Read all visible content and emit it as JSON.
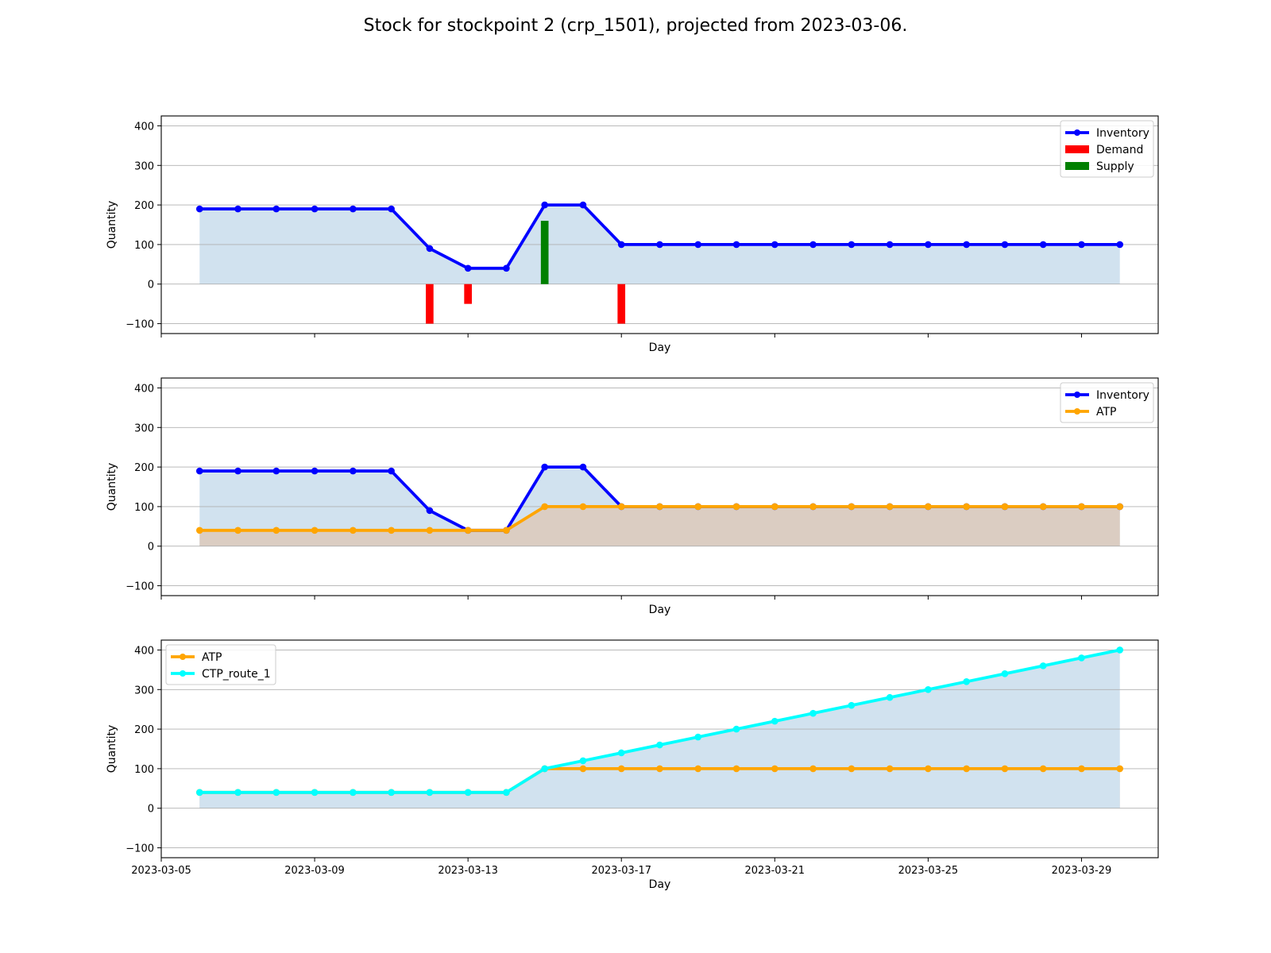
{
  "figure_title": "Stock for stockpoint 2 (crp_1501), projected from 2023-03-06.",
  "colors": {
    "inventory": "#0000ff",
    "demand": "#ff0000",
    "supply": "#008000",
    "atp": "#ffa500",
    "ctp": "#00ffff",
    "fill_blue": "#d1e2ef",
    "fill_tan": "#dbcdc2",
    "grid": "#b0b0b0"
  },
  "chart_data": [
    {
      "type": "line",
      "title": "",
      "xlabel": "Day",
      "ylabel": "Quantity",
      "ylim": [
        -125,
        425
      ],
      "xlim": [
        "2023-03-05",
        "2023-03-31"
      ],
      "yticks": [
        -100,
        0,
        100,
        200,
        300,
        400
      ],
      "ytick_labels": [
        "−100",
        "0",
        "100",
        "200",
        "300",
        "400"
      ],
      "xticks": [
        "2023-03-05",
        "2023-03-09",
        "2023-03-13",
        "2023-03-17",
        "2023-03-21",
        "2023-03-25",
        "2023-03-29"
      ],
      "show_xtick_labels": false,
      "grid": "y",
      "legend": "top-right",
      "x": [
        "2023-03-06",
        "2023-03-07",
        "2023-03-08",
        "2023-03-09",
        "2023-03-10",
        "2023-03-11",
        "2023-03-12",
        "2023-03-13",
        "2023-03-14",
        "2023-03-15",
        "2023-03-16",
        "2023-03-17",
        "2023-03-18",
        "2023-03-19",
        "2023-03-20",
        "2023-03-21",
        "2023-03-22",
        "2023-03-23",
        "2023-03-24",
        "2023-03-25",
        "2023-03-26",
        "2023-03-27",
        "2023-03-28",
        "2023-03-29",
        "2023-03-30"
      ],
      "series": [
        {
          "name": "Inventory",
          "kind": "line",
          "color": "#0000ff",
          "fill": "#d1e2ef",
          "values": [
            190,
            190,
            190,
            190,
            190,
            190,
            90,
            40,
            40,
            200,
            200,
            100,
            100,
            100,
            100,
            100,
            100,
            100,
            100,
            100,
            100,
            100,
            100,
            100,
            100
          ]
        },
        {
          "name": "Demand",
          "kind": "bar",
          "color": "#ff0000",
          "points": [
            {
              "x": "2023-03-12",
              "y": -100
            },
            {
              "x": "2023-03-13",
              "y": -50
            },
            {
              "x": "2023-03-17",
              "y": -100
            }
          ]
        },
        {
          "name": "Supply",
          "kind": "bar",
          "color": "#008000",
          "points": [
            {
              "x": "2023-03-15",
              "y": 160
            }
          ]
        }
      ]
    },
    {
      "type": "line",
      "title": "",
      "xlabel": "Day",
      "ylabel": "Quantity",
      "ylim": [
        -125,
        425
      ],
      "xlim": [
        "2023-03-05",
        "2023-03-31"
      ],
      "yticks": [
        -100,
        0,
        100,
        200,
        300,
        400
      ],
      "ytick_labels": [
        "−100",
        "0",
        "100",
        "200",
        "300",
        "400"
      ],
      "xticks": [
        "2023-03-05",
        "2023-03-09",
        "2023-03-13",
        "2023-03-17",
        "2023-03-21",
        "2023-03-25",
        "2023-03-29"
      ],
      "show_xtick_labels": false,
      "grid": "y",
      "legend": "top-right",
      "x": [
        "2023-03-06",
        "2023-03-07",
        "2023-03-08",
        "2023-03-09",
        "2023-03-10",
        "2023-03-11",
        "2023-03-12",
        "2023-03-13",
        "2023-03-14",
        "2023-03-15",
        "2023-03-16",
        "2023-03-17",
        "2023-03-18",
        "2023-03-19",
        "2023-03-20",
        "2023-03-21",
        "2023-03-22",
        "2023-03-23",
        "2023-03-24",
        "2023-03-25",
        "2023-03-26",
        "2023-03-27",
        "2023-03-28",
        "2023-03-29",
        "2023-03-30"
      ],
      "series": [
        {
          "name": "Inventory",
          "kind": "line",
          "color": "#0000ff",
          "fill": "#d1e2ef",
          "values": [
            190,
            190,
            190,
            190,
            190,
            190,
            90,
            40,
            40,
            200,
            200,
            100,
            100,
            100,
            100,
            100,
            100,
            100,
            100,
            100,
            100,
            100,
            100,
            100,
            100
          ]
        },
        {
          "name": "ATP",
          "kind": "line",
          "color": "#ffa500",
          "fill": "#dbcdc2",
          "values": [
            40,
            40,
            40,
            40,
            40,
            40,
            40,
            40,
            40,
            100,
            100,
            100,
            100,
            100,
            100,
            100,
            100,
            100,
            100,
            100,
            100,
            100,
            100,
            100,
            100
          ]
        }
      ]
    },
    {
      "type": "line",
      "title": "",
      "xlabel": "Day",
      "ylabel": "Quantity",
      "ylim": [
        -125,
        425
      ],
      "xlim": [
        "2023-03-05",
        "2023-03-31"
      ],
      "yticks": [
        -100,
        0,
        100,
        200,
        300,
        400
      ],
      "ytick_labels": [
        "−100",
        "0",
        "100",
        "200",
        "300",
        "400"
      ],
      "xticks": [
        "2023-03-05",
        "2023-03-09",
        "2023-03-13",
        "2023-03-17",
        "2023-03-21",
        "2023-03-25",
        "2023-03-29"
      ],
      "xtick_labels": [
        "2023-03-05",
        "2023-03-09",
        "2023-03-13",
        "2023-03-17",
        "2023-03-21",
        "2023-03-25",
        "2023-03-29"
      ],
      "show_xtick_labels": true,
      "grid": "y",
      "legend": "top-left",
      "x": [
        "2023-03-06",
        "2023-03-07",
        "2023-03-08",
        "2023-03-09",
        "2023-03-10",
        "2023-03-11",
        "2023-03-12",
        "2023-03-13",
        "2023-03-14",
        "2023-03-15",
        "2023-03-16",
        "2023-03-17",
        "2023-03-18",
        "2023-03-19",
        "2023-03-20",
        "2023-03-21",
        "2023-03-22",
        "2023-03-23",
        "2023-03-24",
        "2023-03-25",
        "2023-03-26",
        "2023-03-27",
        "2023-03-28",
        "2023-03-29",
        "2023-03-30"
      ],
      "series": [
        {
          "name": "ATP",
          "kind": "line",
          "color": "#ffa500",
          "fill": "#dbcdc2",
          "values": [
            40,
            40,
            40,
            40,
            40,
            40,
            40,
            40,
            40,
            100,
            100,
            100,
            100,
            100,
            100,
            100,
            100,
            100,
            100,
            100,
            100,
            100,
            100,
            100,
            100
          ]
        },
        {
          "name": "CTP_route_1",
          "kind": "line",
          "color": "#00ffff",
          "fill": "#d1e2ef",
          "values": [
            40,
            40,
            40,
            40,
            40,
            40,
            40,
            40,
            40,
            100,
            120,
            140,
            160,
            180,
            200,
            220,
            240,
            260,
            280,
            300,
            320,
            340,
            360,
            380,
            400
          ]
        }
      ]
    }
  ]
}
